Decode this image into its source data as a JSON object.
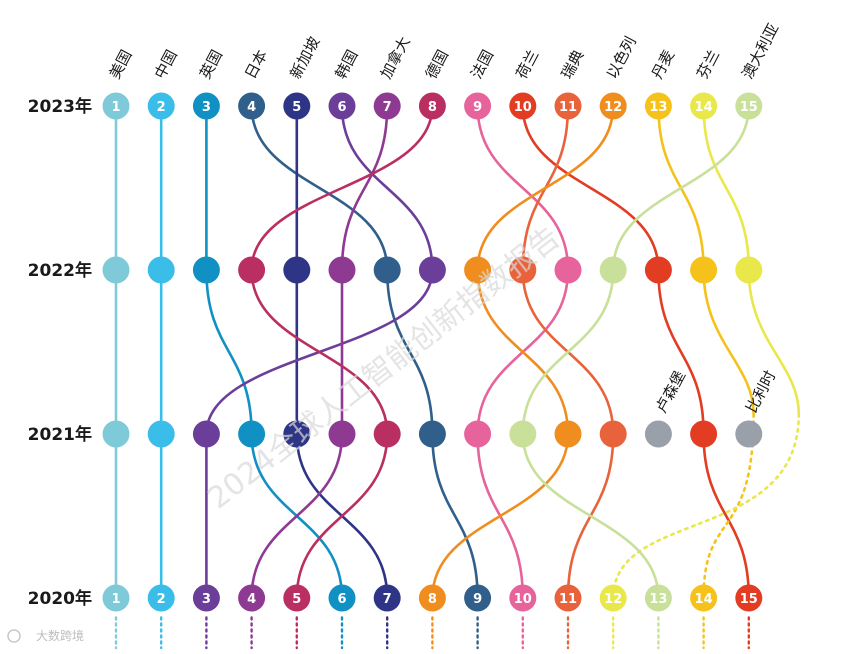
{
  "chart_data": {
    "type": "bump",
    "years": [
      "2023年",
      "2022年",
      "2021年",
      "2020年"
    ],
    "countries": [
      {
        "name": "美国",
        "color": "#7ecad8",
        "ranks": [
          1,
          1,
          1,
          1
        ]
      },
      {
        "name": "中国",
        "color": "#3bbdea",
        "ranks": [
          2,
          2,
          2,
          2
        ]
      },
      {
        "name": "英国",
        "color": "#1190c4",
        "ranks": [
          3,
          3,
          4,
          6
        ]
      },
      {
        "name": "日本",
        "color": "#2f5f8a",
        "ranks": [
          4,
          7,
          8,
          9
        ]
      },
      {
        "name": "新加坡",
        "color": "#2e3586",
        "ranks": [
          5,
          5,
          5,
          7
        ]
      },
      {
        "name": "韩国",
        "color": "#6b3e99",
        "ranks": [
          6,
          8,
          3,
          3
        ]
      },
      {
        "name": "加拿大",
        "color": "#8e3a93",
        "ranks": [
          7,
          6,
          6,
          4
        ]
      },
      {
        "name": "德国",
        "color": "#b92f62",
        "ranks": [
          8,
          4,
          7,
          5
        ]
      },
      {
        "name": "法国",
        "color": "#e7639b",
        "ranks": [
          9,
          11,
          9,
          10
        ]
      },
      {
        "name": "荷兰",
        "color": "#e23c22",
        "ranks": [
          10,
          13,
          14,
          15
        ]
      },
      {
        "name": "瑞典",
        "color": "#e8633c",
        "ranks": [
          11,
          10,
          12,
          11
        ]
      },
      {
        "name": "以色列",
        "color": "#f08d1f",
        "ranks": [
          12,
          9,
          11,
          8
        ]
      },
      {
        "name": "丹麦",
        "color": "#f5c21b",
        "ranks": [
          13,
          14,
          null,
          14
        ]
      },
      {
        "name": "芬兰",
        "color": "#e8e84a",
        "ranks": [
          14,
          15,
          null,
          12
        ]
      },
      {
        "name": "澳大利亚",
        "color": "#c8e09a",
        "ranks": [
          15,
          12,
          10,
          13
        ]
      },
      {
        "name": "卢森堡",
        "color": "#9aa0aa",
        "ranks": [
          null,
          null,
          13,
          null
        ]
      },
      {
        "name": "比利时",
        "color": "#9aa0aa",
        "ranks": [
          null,
          null,
          15,
          null
        ]
      }
    ],
    "top_labels": [
      "美国",
      "中国",
      "英国",
      "日本",
      "新加坡",
      "韩国",
      "加拿大",
      "德国",
      "法国",
      "荷兰",
      "瑞典",
      "以色列",
      "丹麦",
      "芬兰",
      "澳大利亚"
    ],
    "inline_labels": [
      "卢森堡",
      "比利时"
    ],
    "watermark": "2024全球人工智能创新指数报告",
    "logo": "大数跨境"
  }
}
